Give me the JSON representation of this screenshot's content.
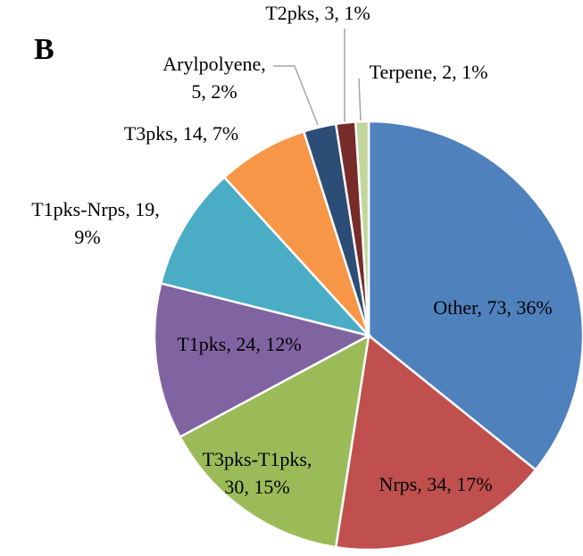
{
  "chart_data": {
    "type": "pie",
    "panel": "B",
    "categories": [
      "Other",
      "Nrps",
      "T3pks-T1pks",
      "T1pks",
      "T1pks-Nrps",
      "T3pks",
      "Arylpolyene",
      "T2pks",
      "Terpene"
    ],
    "values": [
      73,
      34,
      30,
      24,
      19,
      14,
      5,
      3,
      2
    ],
    "labels": [
      [
        "Other, 73, 36%"
      ],
      [
        "Nrps, 34, 17%"
      ],
      [
        "T3pks-T1pks,",
        "30, 15%"
      ],
      [
        "T1pks, 24, 12%"
      ],
      [
        "T1pks-Nrps, 19,",
        "9%"
      ],
      [
        "T3pks, 14, 7%"
      ],
      [
        "Arylpolyene,",
        "5, 2%"
      ],
      [
        "T2pks, 3, 1%"
      ],
      [
        "Terpene, 2, 1%"
      ]
    ],
    "colors": [
      "#4f81bd",
      "#c0504d",
      "#9bbb59",
      "#8064a2",
      "#4bacc6",
      "#f79646",
      "#2c4d75",
      "#772c2a",
      "#c3d69b"
    ]
  }
}
